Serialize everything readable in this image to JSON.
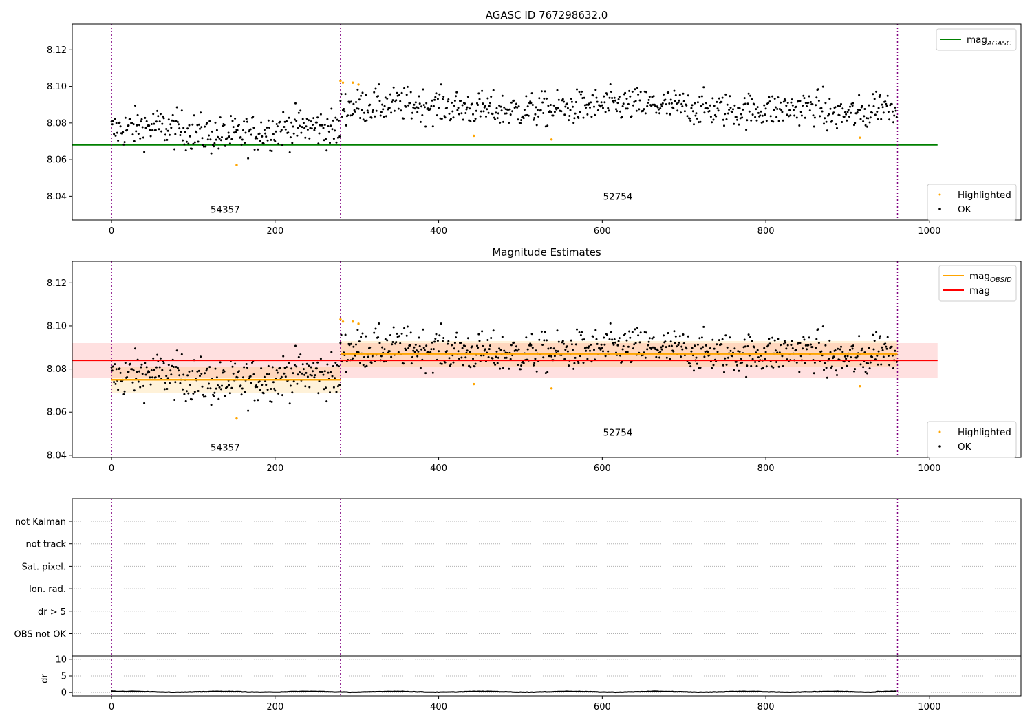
{
  "chart_data": [
    {
      "type": "scatter",
      "title": "AGASC ID 767298632.0",
      "xlim": [
        -48,
        1112
      ],
      "ylim": [
        8.027,
        8.134
      ],
      "x_ticks": [
        0,
        200,
        400,
        600,
        800,
        1000
      ],
      "y_ticks": [
        8.04,
        8.06,
        8.08,
        8.1,
        8.12
      ],
      "series": [
        {
          "name": "OK",
          "color": "#000000",
          "marker": "point",
          "description": "per-sample magnitude estimates"
        },
        {
          "name": "Highlighted",
          "color": "#ffa500",
          "marker": "point",
          "x": [
            280,
            283,
            295,
            302,
            443,
            538,
            153,
            915
          ],
          "y": [
            8.103,
            8.102,
            8.102,
            8.101,
            8.073,
            8.071,
            8.057,
            8.072
          ]
        }
      ],
      "lines": [
        {
          "name": "mag",
          "subscript": "AGASC",
          "color": "#008000",
          "y": 8.068,
          "x": [
            -48,
            1010
          ]
        }
      ],
      "obs_boundaries": [
        0,
        280,
        961
      ],
      "obs_labels": [
        {
          "text": "54357",
          "x": 139,
          "y": 8.031
        },
        {
          "text": "52754",
          "x": 619,
          "y": 8.038
        }
      ],
      "legend": {
        "upper": "top-right",
        "lower": "bottom-right"
      }
    },
    {
      "type": "scatter",
      "title": "Magnitude Estimates",
      "xlim": [
        -48,
        1112
      ],
      "ylim": [
        8.039,
        8.13
      ],
      "x_ticks": [
        0,
        200,
        400,
        600,
        800,
        1000
      ],
      "y_ticks": [
        8.04,
        8.06,
        8.08,
        8.1,
        8.12
      ],
      "series": [
        {
          "name": "OK",
          "color": "#000000",
          "marker": "point"
        },
        {
          "name": "Highlighted",
          "color": "#ffa500",
          "marker": "point",
          "x": [
            280,
            283,
            295,
            302,
            443,
            538,
            153,
            915
          ],
          "y": [
            8.103,
            8.102,
            8.102,
            8.101,
            8.073,
            8.071,
            8.057,
            8.072
          ]
        }
      ],
      "lines": [
        {
          "name": "mag",
          "subscript": "OBSID",
          "color": "#ffa500",
          "segments": [
            {
              "x": [
                0,
                280
              ],
              "y": 8.075,
              "band": [
                8.069,
                8.081
              ]
            },
            {
              "x": [
                280,
                961
              ],
              "y": 8.087,
              "band": [
                8.081,
                8.093
              ]
            }
          ]
        },
        {
          "name": "mag",
          "color": "#ff0000",
          "y": 8.084,
          "x": [
            -48,
            1010
          ],
          "band": [
            8.076,
            8.092
          ]
        }
      ],
      "obs_boundaries": [
        0,
        280,
        961
      ],
      "obs_labels": [
        {
          "text": "54357",
          "x": 139,
          "y": 8.042
        },
        {
          "text": "52754",
          "x": 619,
          "y": 8.049
        }
      ],
      "legend": {
        "upper": "top-right",
        "lower": "bottom-right"
      }
    },
    {
      "type": "line",
      "title": "",
      "xlim": [
        -48,
        1112
      ],
      "categories": [
        "not Kalman",
        "not track",
        "Sat. pixel.",
        "Ion. rad.",
        "dr > 5",
        "OBS not OK"
      ],
      "obs_boundaries": [
        0,
        280,
        961
      ],
      "grid": true
    },
    {
      "type": "line",
      "title": "",
      "ylabel": "dr",
      "xlim": [
        -48,
        1112
      ],
      "ylim": [
        -1,
        11
      ],
      "x_ticks": [
        0,
        200,
        400,
        600,
        800,
        1000
      ],
      "y_ticks": [
        0,
        5,
        10
      ],
      "series": [
        {
          "name": "dr",
          "color": "#000000",
          "level": 0.2,
          "max": 0.6
        }
      ],
      "obs_boundaries": [
        0,
        280,
        961
      ],
      "grid": true
    }
  ],
  "legends": {
    "top_upper": [
      {
        "label": "mag",
        "sub": "AGASC",
        "color": "#008000"
      }
    ],
    "top_lower": [
      {
        "label": "Highlighted",
        "color": "#ffa500"
      },
      {
        "label": "OK",
        "color": "#000000"
      }
    ],
    "mid_upper": [
      {
        "label": "mag",
        "sub": "OBSID",
        "color": "#ffa500"
      },
      {
        "label": "mag",
        "sub": "",
        "color": "#ff0000"
      }
    ],
    "mid_lower": [
      {
        "label": "Highlighted",
        "color": "#ffa500"
      },
      {
        "label": "OK",
        "color": "#000000"
      }
    ]
  }
}
